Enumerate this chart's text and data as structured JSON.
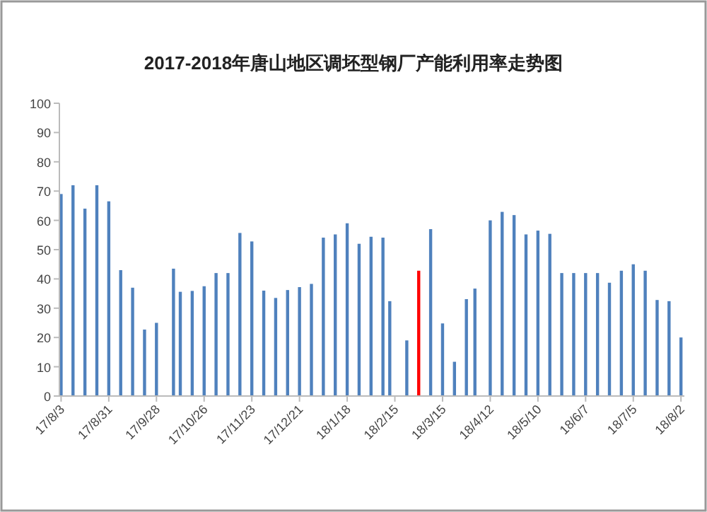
{
  "chart_data": {
    "type": "bar",
    "title": "2017-2018年唐山地区调坯型钢厂产能利用率走势图",
    "x": [
      "2017-08-03",
      "2017-08-10",
      "2017-08-17",
      "2017-08-24",
      "2017-08-31",
      "2017-09-07",
      "2017-09-14",
      "2017-09-21",
      "2017-09-28",
      "2017-10-08",
      "2017-10-12",
      "2017-10-19",
      "2017-10-26",
      "2017-11-02",
      "2017-11-09",
      "2017-11-16",
      "2017-11-23",
      "2017-11-30",
      "2017-12-07",
      "2017-12-14",
      "2017-12-21",
      "2017-12-28",
      "2018-01-04",
      "2018-01-11",
      "2018-01-18",
      "2018-01-25",
      "2018-02-01",
      "2018-02-08",
      "2018-02-12",
      "2018-02-22",
      "2018-03-01",
      "2018-03-08",
      "2018-03-15",
      "2018-03-22",
      "2018-03-29",
      "2018-04-03",
      "2018-04-12",
      "2018-04-19",
      "2018-04-26",
      "2018-05-03",
      "2018-05-10",
      "2018-05-17",
      "2018-05-24",
      "2018-05-31",
      "2018-06-07",
      "2018-06-14",
      "2018-06-21",
      "2018-06-28",
      "2018-07-05",
      "2018-07-12",
      "2018-07-19",
      "2018-07-26",
      "2018-08-02"
    ],
    "values": [
      69,
      72,
      64,
      72,
      66.5,
      43,
      37,
      22.7,
      25,
      43.5,
      35.6,
      35.9,
      37.5,
      42,
      42,
      55.7,
      52.8,
      36,
      33.5,
      36.2,
      37.2,
      38.3,
      54.1,
      55.2,
      59,
      52,
      54.4,
      54.1,
      32.4,
      19,
      42.8,
      57,
      24.8,
      11.7,
      33.1,
      36.7,
      60,
      62.9,
      61.8,
      55.2,
      56.5,
      55.4,
      42,
      42,
      42,
      42,
      38.7,
      42.8,
      45,
      42.8,
      32.8,
      32.4,
      20
    ],
    "colors": [
      "#4f81bd",
      "#4f81bd",
      "#4f81bd",
      "#4f81bd",
      "#4f81bd",
      "#4f81bd",
      "#4f81bd",
      "#4f81bd",
      "#4f81bd",
      "#4f81bd",
      "#4f81bd",
      "#4f81bd",
      "#4f81bd",
      "#4f81bd",
      "#4f81bd",
      "#4f81bd",
      "#4f81bd",
      "#4f81bd",
      "#4f81bd",
      "#4f81bd",
      "#4f81bd",
      "#4f81bd",
      "#4f81bd",
      "#4f81bd",
      "#4f81bd",
      "#4f81bd",
      "#4f81bd",
      "#4f81bd",
      "#4f81bd",
      "#4f81bd",
      "#ff0000",
      "#4f81bd",
      "#4f81bd",
      "#4f81bd",
      "#4f81bd",
      "#4f81bd",
      "#4f81bd",
      "#4f81bd",
      "#4f81bd",
      "#4f81bd",
      "#4f81bd",
      "#4f81bd",
      "#4f81bd",
      "#4f81bd",
      "#4f81bd",
      "#4f81bd",
      "#4f81bd",
      "#4f81bd",
      "#4f81bd",
      "#4f81bd",
      "#4f81bd",
      "#4f81bd",
      "#4f81bd"
    ],
    "xlim": [
      "2017-08-02",
      "2018-08-04"
    ],
    "xticks": [
      {
        "value": "2017-08-03",
        "label": "17/8/3"
      },
      {
        "value": "2017-08-31",
        "label": "17/8/31"
      },
      {
        "value": "2017-09-28",
        "label": "17/9/28"
      },
      {
        "value": "2017-10-26",
        "label": "17/10/26"
      },
      {
        "value": "2017-11-23",
        "label": "17/11/23"
      },
      {
        "value": "2017-12-21",
        "label": "17/12/21"
      },
      {
        "value": "2018-01-18",
        "label": "18/1/18"
      },
      {
        "value": "2018-02-15",
        "label": "18/2/15"
      },
      {
        "value": "2018-03-15",
        "label": "18/3/15"
      },
      {
        "value": "2018-04-12",
        "label": "18/4/12"
      },
      {
        "value": "2018-05-10",
        "label": "18/5/10"
      },
      {
        "value": "2018-06-07",
        "label": "18/6/7"
      },
      {
        "value": "2018-07-05",
        "label": "18/7/5"
      },
      {
        "value": "2018-08-02",
        "label": "18/8/2"
      }
    ],
    "ylim": [
      0,
      100
    ],
    "yticks": [
      0,
      10,
      20,
      30,
      40,
      50,
      60,
      70,
      80,
      90,
      100
    ]
  }
}
